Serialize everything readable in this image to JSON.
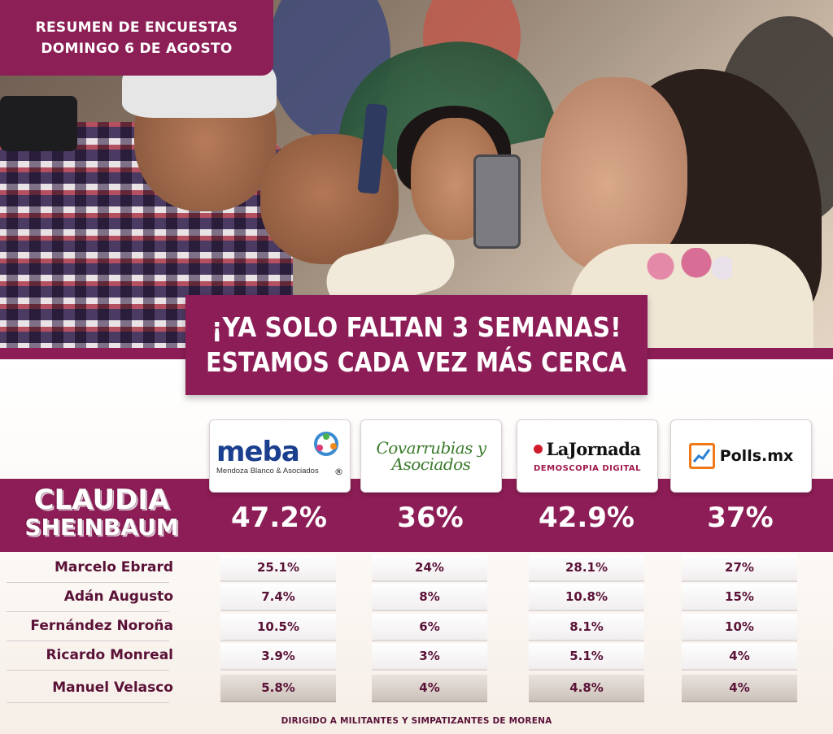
{
  "header": {
    "line1": "RESUMEN DE ENCUESTAS",
    "line2": "DOMINGO 6 DE AGOSTO"
  },
  "headline": {
    "line1": "¡YA SOLO FALTAN 3 SEMANAS!",
    "line2": "ESTAMOS CADA VEZ MÁS CERCA"
  },
  "pollsters": [
    {
      "name": "meba",
      "subtitle": "Mendoza Blanco & Asociados",
      "mark": "®"
    },
    {
      "name_line1": "Covarrubias y",
      "name_line2": "Asociados"
    },
    {
      "name": "LaJornada",
      "subtitle": "DEMOSCOPIA DIGITAL"
    },
    {
      "name": "Polls.mx"
    }
  ],
  "leader": {
    "first_name": "CLAUDIA",
    "last_name": "SHEINBAUM",
    "values": [
      "47.2%",
      "36%",
      "42.9%",
      "37%"
    ]
  },
  "candidates": [
    {
      "name": "Marcelo Ebrard",
      "values": [
        "25.1%",
        "24%",
        "28.1%",
        "27%"
      ]
    },
    {
      "name": "Adán Augusto",
      "values": [
        "7.4%",
        "8%",
        "10.8%",
        "15%"
      ]
    },
    {
      "name": "Fernández Noroña",
      "values": [
        "10.5%",
        "6%",
        "8.1%",
        "10%"
      ]
    },
    {
      "name": "Ricardo Monreal",
      "values": [
        "3.9%",
        "3%",
        "5.1%",
        "4%"
      ]
    },
    {
      "name": "Manuel Velasco",
      "values": [
        "5.8%",
        "4%",
        "4.8%",
        "4%"
      ]
    }
  ],
  "footer": {
    "note": "DIRIGIDO A MILITANTES Y SIMPATIZANTES DE MORENA"
  },
  "colors": {
    "brand_maroon": "#8d1d56",
    "text_maroon": "#5a1237"
  }
}
